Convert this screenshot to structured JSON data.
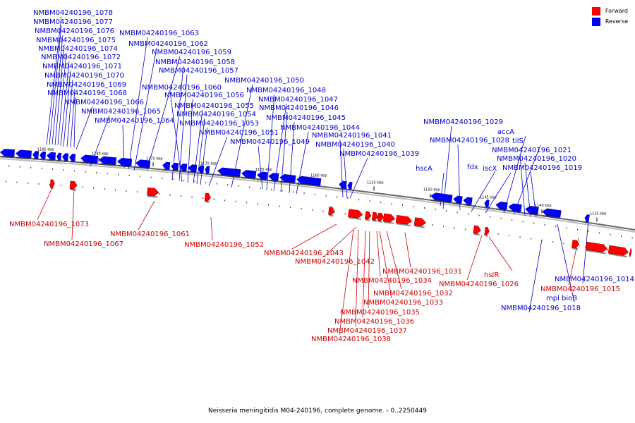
{
  "caption": "Neisseria meningitidis M04-240196, complete genome. - 0..2250449",
  "legend": [
    {
      "label": "Forward",
      "color": "#ff0000"
    },
    {
      "label": "Reverse",
      "color": "#0000ff"
    }
  ],
  "colors": {
    "forward": "#ff0000",
    "reverse": "#0000ff",
    "backbone": "#777777",
    "forward_text": "#cc0000",
    "reverse_text": "#0000cc"
  },
  "ticks": [
    "1185 kbp",
    "1180 kbp",
    "1175 kbp",
    "1170 kbp",
    "1165 kbp",
    "1160 kbp",
    "1155 kbp",
    "1150 kbp",
    "1145 kbp",
    "1140 kbp",
    "1135 kbp"
  ],
  "reverse_labels": [
    "NMBM04240196_1078",
    "NMBM04240196_1077",
    "NMBM04240196_1076",
    "NMBM04240196_1075",
    "NMBM04240196_1074",
    "NMBM04240196_1072",
    "NMBM04240196_1071",
    "NMBM04240196_1070",
    "NMBM04240196_1069",
    "NMBM04240196_1068",
    "NMBM04240196_1066",
    "NMBM04240196_1065",
    "NMBM04240196_1064",
    "NMBM04240196_1063",
    "NMBM04240196_1062",
    "NMBM04240196_1059",
    "NMBM04240196_1058",
    "NMBM04240196_1057",
    "NMBM04240196_1060",
    "NMBM04240196_1056",
    "NMBM04240196_1055",
    "NMBM04240196_1054",
    "NMBM04240196_1053",
    "NMBM04240196_1051",
    "NMBM04240196_1050",
    "NMBM04240196_1048",
    "NMBM04240196_1047",
    "NMBM04240196_1046",
    "NMBM04240196_1045",
    "NMBM04240196_1044",
    "NMBM04240196_1049",
    "NMBM04240196_1041",
    "NMBM04240196_1040",
    "NMBM04240196_1039",
    "NMBM04240196_1029",
    "NMBM04240196_1028",
    "hscA",
    "fdx",
    "iscX",
    "accA",
    "tilS",
    "NMBM04240196_1021",
    "NMBM04240196_1020",
    "NMBM04240196_1019",
    "NMBM04240196_1014",
    "mpl bioB",
    "NMBM04240196_1018"
  ],
  "forward_labels": [
    "NMBM04240196_1073",
    "NMBM04240196_1067",
    "NMBM04240196_1061",
    "NMBM04240196_1052",
    "NMBM04240196_1043",
    "NMBM04240196_1042",
    "NMBM04240196_1031",
    "NMBM04240196_1034",
    "NMBM04240196_1032",
    "NMBM04240196_1033",
    "NMBM04240196_1035",
    "NMBM04240196_1036",
    "NMBM04240196_1037",
    "NMBM04240196_1038",
    "hslR",
    "NMBM04240196_1026",
    "NMBM04240196_1015"
  ]
}
